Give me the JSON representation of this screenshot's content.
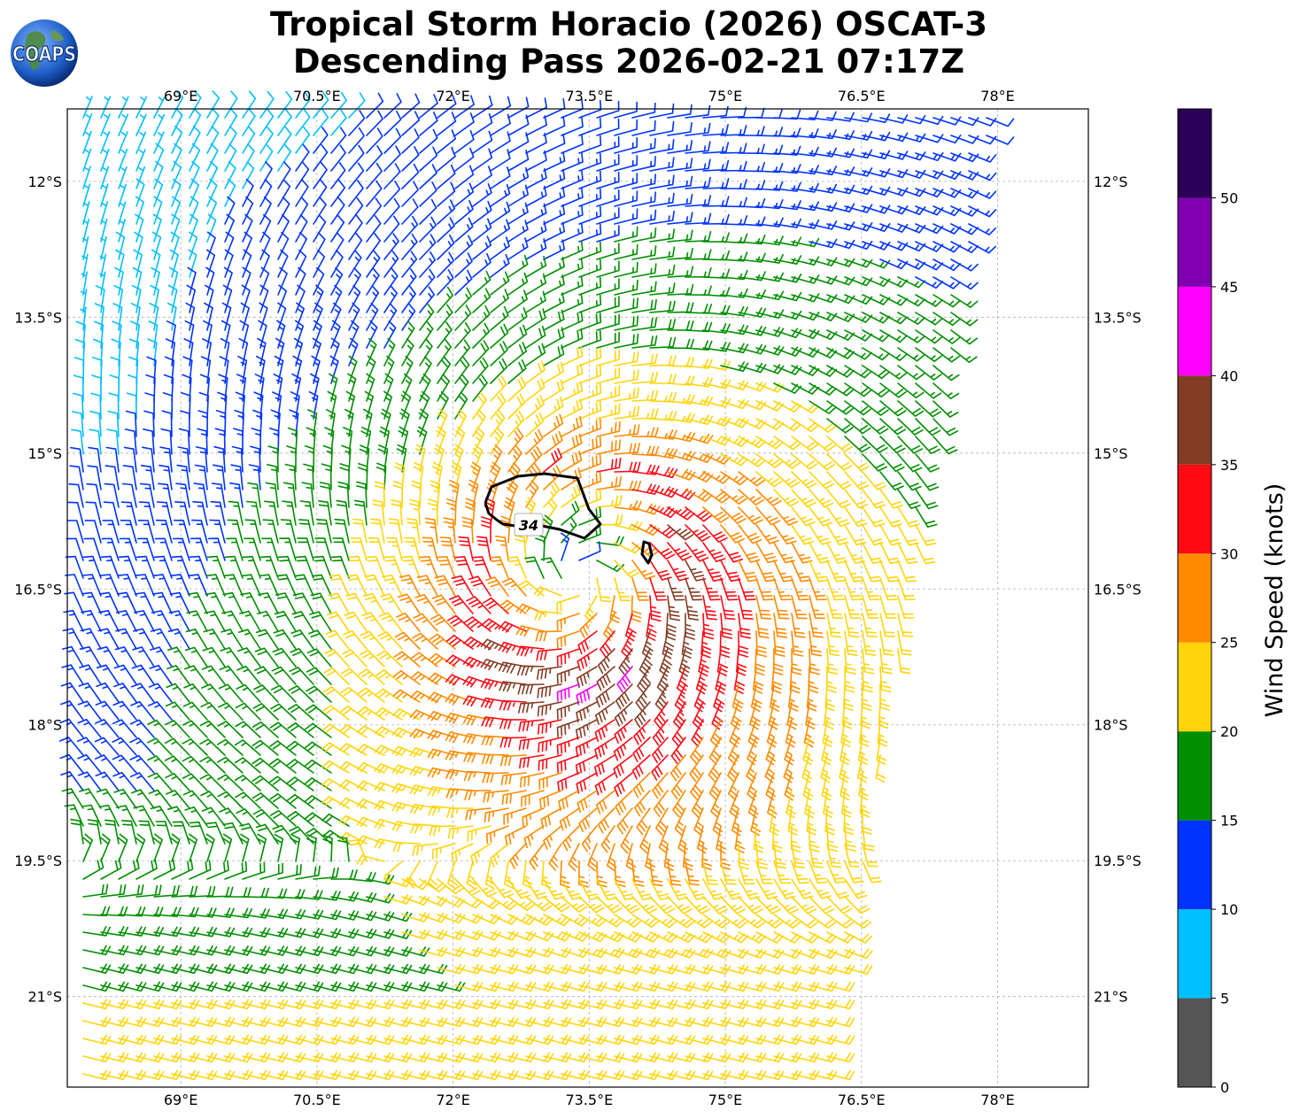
{
  "title": {
    "line1": "Tropical Storm Horacio (2026) OSCAT-3",
    "line2": "Descending Pass 2026-02-21 07:17Z"
  },
  "logo": {
    "text": "COAPS"
  },
  "map": {
    "lon_range": [
      67.75,
      79.0
    ],
    "lat_range": [
      -22.0,
      -11.2
    ],
    "lon_ticks": [
      "69°E",
      "70.5°E",
      "72°E",
      "73.5°E",
      "75°E",
      "76.5°E",
      "78°E"
    ],
    "lon_tick_values": [
      69,
      70.5,
      72,
      73.5,
      75,
      76.5,
      78
    ],
    "lat_ticks": [
      "12°S",
      "13.5°S",
      "15°S",
      "16.5°S",
      "18°S",
      "19.5°S",
      "21°S"
    ],
    "lat_tick_values": [
      -12,
      -13.5,
      -15,
      -16.5,
      -18,
      -19.5,
      -21
    ],
    "storm_center": {
      "lon": 73.4,
      "lat": -16.35
    },
    "contour_label": "34"
  },
  "colorbar": {
    "label": "Wind Speed (knots)",
    "ticks": [
      "0",
      "5",
      "10",
      "15",
      "20",
      "25",
      "30",
      "35",
      "40",
      "45",
      "50"
    ],
    "bins": [
      {
        "min": 0,
        "max": 5,
        "color": "#555555"
      },
      {
        "min": 5,
        "max": 10,
        "color": "#00bfff"
      },
      {
        "min": 10,
        "max": 15,
        "color": "#0033ff"
      },
      {
        "min": 15,
        "max": 20,
        "color": "#008f00"
      },
      {
        "min": 20,
        "max": 25,
        "color": "#ffd50a"
      },
      {
        "min": 25,
        "max": 30,
        "color": "#ff8a00"
      },
      {
        "min": 30,
        "max": 35,
        "color": "#ff0a14"
      },
      {
        "min": 35,
        "max": 40,
        "color": "#833c24"
      },
      {
        "min": 40,
        "max": 45,
        "color": "#ff00ff"
      },
      {
        "min": 45,
        "max": 50,
        "color": "#8000b0"
      },
      {
        "min": 50,
        "max": 55,
        "color": "#2b0057"
      }
    ]
  }
}
